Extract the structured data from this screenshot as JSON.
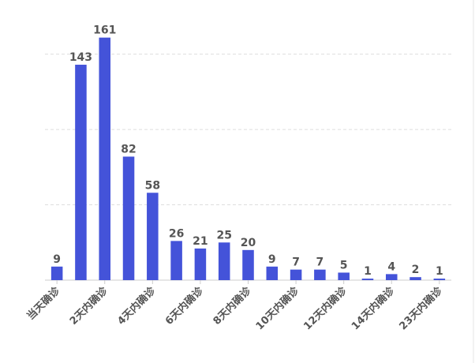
{
  "chart_data": {
    "type": "bar",
    "categories": [
      "当天确诊",
      null,
      "2天内确诊",
      null,
      "4天内确诊",
      null,
      "6天内确诊",
      null,
      "8天内确诊",
      null,
      "10天内确诊",
      null,
      "12天内确诊",
      null,
      "14天内确诊",
      null,
      "23天内确诊"
    ],
    "values": [
      9,
      143,
      161,
      82,
      58,
      26,
      21,
      25,
      20,
      9,
      7,
      7,
      5,
      1,
      4,
      2,
      1
    ],
    "color": "#4453d9",
    "ylim": [
      0,
      175
    ],
    "yticks": [
      0,
      50,
      100,
      150
    ],
    "grid": true
  }
}
